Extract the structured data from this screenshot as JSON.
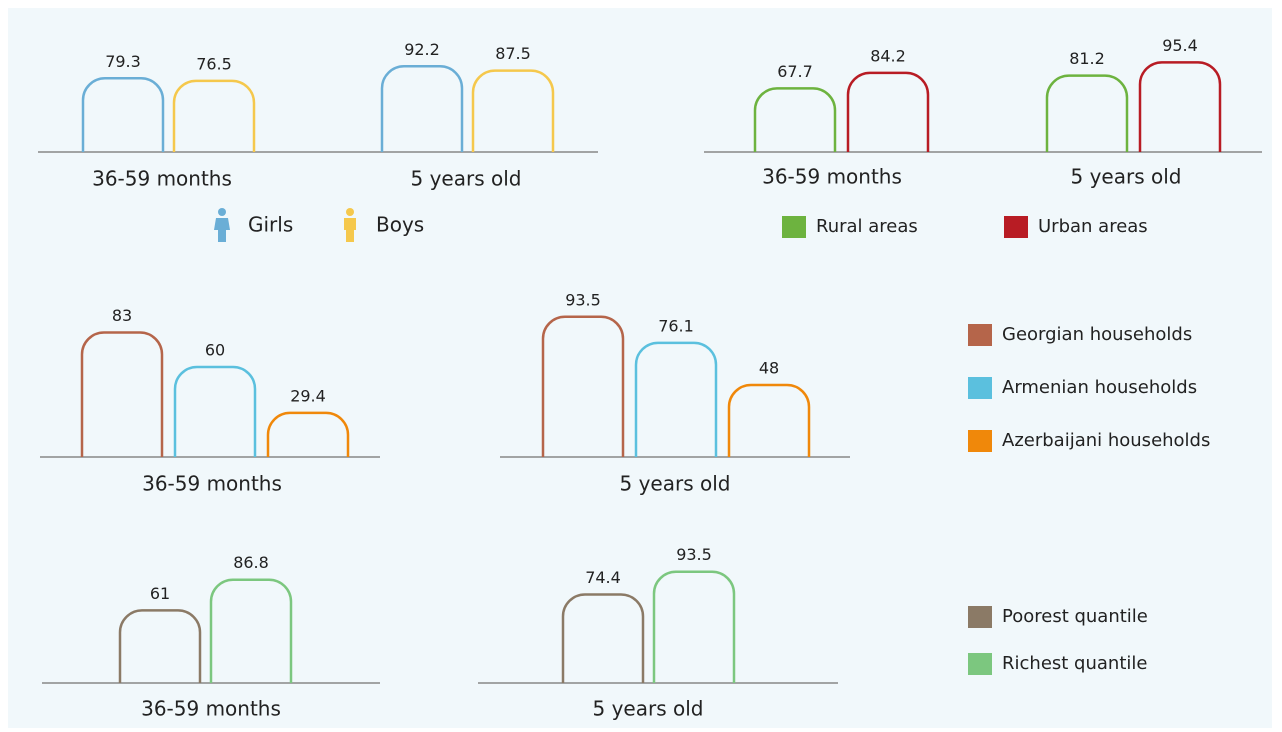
{
  "chart_data": [
    {
      "type": "bar",
      "categories": [
        "36-59 months",
        "5 years old"
      ],
      "ylim": [
        0,
        100
      ],
      "series": [
        {
          "name": "Girls",
          "color": "#6aaed6",
          "values": [
            79.3,
            92.2
          ]
        },
        {
          "name": "Boys",
          "color": "#f5c84c",
          "values": [
            76.5,
            87.5
          ]
        }
      ]
    },
    {
      "type": "bar",
      "categories": [
        "36-59 months",
        "5 years old"
      ],
      "ylim": [
        0,
        100
      ],
      "series": [
        {
          "name": "Rural areas",
          "color": "#6db33f",
          "values": [
            67.7,
            81.2
          ]
        },
        {
          "name": "Urban areas",
          "color": "#b81c24",
          "values": [
            84.2,
            95.4
          ]
        }
      ]
    },
    {
      "type": "bar",
      "categories": [
        "36-59 months",
        "5 years old"
      ],
      "ylim": [
        0,
        100
      ],
      "series": [
        {
          "name": "Georgian households",
          "color": "#b5654a",
          "values": [
            83,
            93.5
          ]
        },
        {
          "name": "Armenian households",
          "color": "#5bc0de",
          "values": [
            60,
            76.1
          ]
        },
        {
          "name": "Azerbaijani households",
          "color": "#f0880a",
          "values": [
            29.4,
            48
          ]
        }
      ]
    },
    {
      "type": "bar",
      "categories": [
        "36-59 months",
        "5 years old"
      ],
      "ylim": [
        0,
        100
      ],
      "series": [
        {
          "name": "Poorest quantile",
          "color": "#8b7a66",
          "values": [
            61,
            74.4
          ]
        },
        {
          "name": "Richest quantile",
          "color": "#7cc77f",
          "values": [
            86.8,
            93.5
          ]
        }
      ]
    }
  ]
}
